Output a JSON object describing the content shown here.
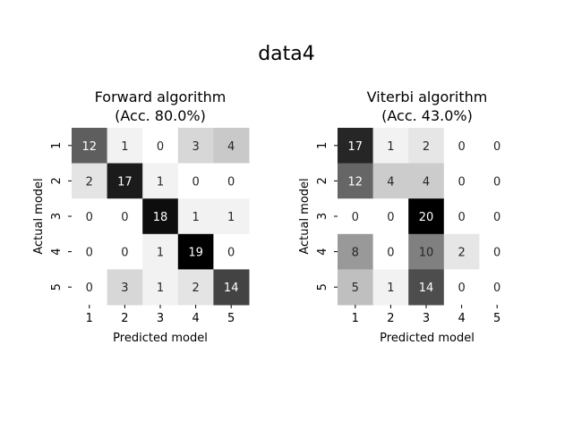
{
  "suptitle": "data4",
  "chart_data": [
    {
      "type": "heatmap",
      "title_line1": "Forward algorithm",
      "title_line2": "(Acc. 80.0%)",
      "xlabel": "Predicted model",
      "ylabel": "Actual model",
      "x_categories": [
        "1",
        "2",
        "3",
        "4",
        "5"
      ],
      "y_categories": [
        "1",
        "2",
        "3",
        "4",
        "5"
      ],
      "colormap": "Greys",
      "values": [
        [
          12,
          1,
          0,
          3,
          4
        ],
        [
          2,
          17,
          1,
          0,
          0
        ],
        [
          0,
          0,
          18,
          1,
          1
        ],
        [
          0,
          0,
          1,
          19,
          0
        ],
        [
          0,
          3,
          1,
          2,
          14
        ]
      ]
    },
    {
      "type": "heatmap",
      "title_line1": "Viterbi algorithm",
      "title_line2": "(Acc. 43.0%)",
      "xlabel": "Predicted model",
      "ylabel": "Actual model",
      "x_categories": [
        "1",
        "2",
        "3",
        "4",
        "5"
      ],
      "y_categories": [
        "1",
        "2",
        "3",
        "4",
        "5"
      ],
      "colormap": "Greys",
      "values": [
        [
          17,
          1,
          2,
          0,
          0
        ],
        [
          12,
          4,
          4,
          0,
          0
        ],
        [
          0,
          0,
          20,
          0,
          0
        ],
        [
          8,
          0,
          10,
          2,
          0
        ],
        [
          5,
          1,
          14,
          0,
          0
        ]
      ]
    }
  ]
}
